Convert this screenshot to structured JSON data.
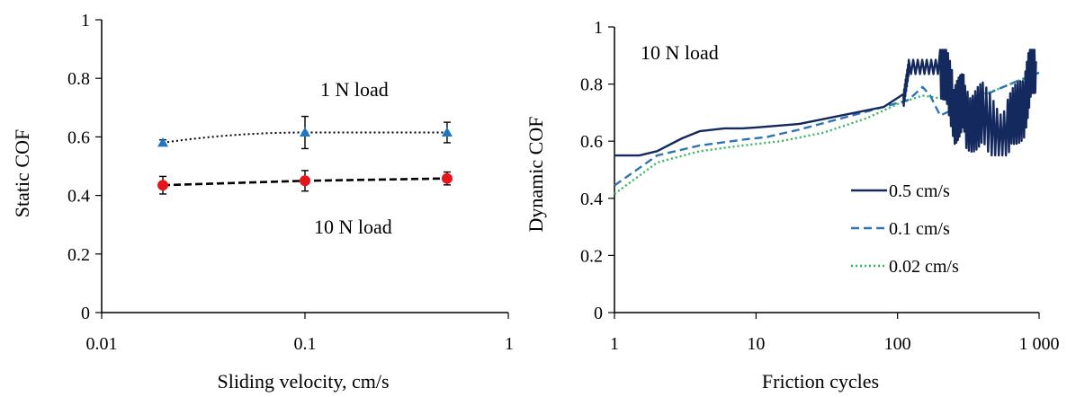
{
  "chart_data": [
    {
      "type": "scatter",
      "title": "",
      "xlabel": "Sliding velocity,  cm/s",
      "ylabel": "Static  COF",
      "xscale": "log",
      "xlim": [
        0.01,
        1
      ],
      "ylim": [
        0,
        1
      ],
      "xticks": [
        "0.01",
        "0.1",
        "1"
      ],
      "yticks": [
        "0",
        "0.2",
        "0.4",
        "0.6",
        "0.8",
        "1"
      ],
      "grid": false,
      "series": [
        {
          "name": "1 N load",
          "marker": "triangle",
          "color": "#1f77c4",
          "trendline": "dotted",
          "x": [
            0.02,
            0.1,
            0.5
          ],
          "y": [
            0.58,
            0.615,
            0.615
          ],
          "error": [
            0.01,
            0.055,
            0.035
          ]
        },
        {
          "name": "10 N load",
          "marker": "circle",
          "color": "#e8141b",
          "trendline": "dashed",
          "x": [
            0.02,
            0.1,
            0.5
          ],
          "y": [
            0.435,
            0.45,
            0.458
          ],
          "error": [
            0.03,
            0.035,
            0.022
          ]
        }
      ],
      "annotations": [
        "1 N load",
        "10 N load"
      ]
    },
    {
      "type": "line",
      "title": "",
      "xlabel": "Friction cycles",
      "ylabel": "Dynamic  COF",
      "xscale": "log",
      "xlim": [
        1,
        1000
      ],
      "ylim": [
        0,
        1
      ],
      "xticks": [
        "1",
        "10",
        "100",
        "1 000"
      ],
      "yticks": [
        "0",
        "0.2",
        "0.4",
        "0.6",
        "0.8",
        "1"
      ],
      "grid": false,
      "legend": "bottom-right",
      "annotation": "10 N load",
      "series": [
        {
          "name": "0.5 cm/s",
          "color": "#14295e",
          "dash": "solid",
          "x": [
            1,
            1.5,
            2,
            3,
            4,
            6,
            8,
            10,
            20,
            40,
            80,
            110,
            120,
            200,
            250,
            300,
            400,
            600,
            800,
            950
          ],
          "y": [
            0.46,
            0.52,
            0.565,
            0.61,
            0.635,
            0.645,
            0.645,
            0.648,
            0.66,
            0.69,
            0.72,
            0.74,
            0.86,
            0.86,
            0.72,
            0.7,
            0.68,
            0.62,
            0.75,
            0.88
          ]
        },
        {
          "name": "0.1 cm/s",
          "color": "#2e75b6",
          "dash": "dashed",
          "x": [
            1,
            2,
            4,
            8,
            12,
            20,
            40,
            80,
            120,
            150,
            170,
            200,
            300,
            500,
            700,
            1000
          ],
          "y": [
            0.445,
            0.55,
            0.585,
            0.605,
            0.615,
            0.64,
            0.68,
            0.72,
            0.745,
            0.79,
            0.76,
            0.69,
            0.73,
            0.78,
            0.81,
            0.84
          ]
        },
        {
          "name": "0.02 cm/s",
          "color": "#2fb85a",
          "dash": "dotted",
          "x": [
            1,
            2,
            4,
            8,
            15,
            30,
            60,
            100,
            150,
            200,
            300,
            500,
            700,
            1000
          ],
          "y": [
            0.415,
            0.525,
            0.565,
            0.585,
            0.6,
            0.63,
            0.68,
            0.73,
            0.76,
            0.75,
            0.745,
            0.78,
            0.81,
            0.84
          ]
        }
      ]
    }
  ]
}
